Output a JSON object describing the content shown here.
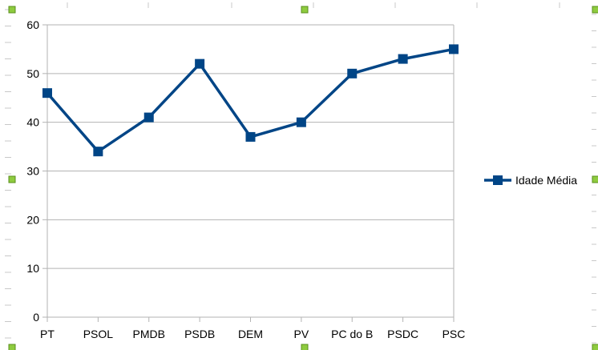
{
  "chart_data": {
    "type": "line",
    "categories": [
      "PT",
      "PSOL",
      "PMDB",
      "PSDB",
      "DEM",
      "PV",
      "PC do B",
      "PSDC",
      "PSC"
    ],
    "series": [
      {
        "name": "Idade Média",
        "values": [
          46,
          34,
          41,
          52,
          37,
          40,
          50,
          53,
          55
        ],
        "color": "#004586"
      }
    ],
    "y_ticks": [
      0,
      10,
      20,
      30,
      40,
      50,
      60
    ],
    "ylim": [
      0,
      60
    ],
    "grid": true,
    "legend_position": "right",
    "marker": "square"
  },
  "colors": {
    "grid": "#b3b3b3",
    "selection_handle": "#8ecb3f"
  }
}
